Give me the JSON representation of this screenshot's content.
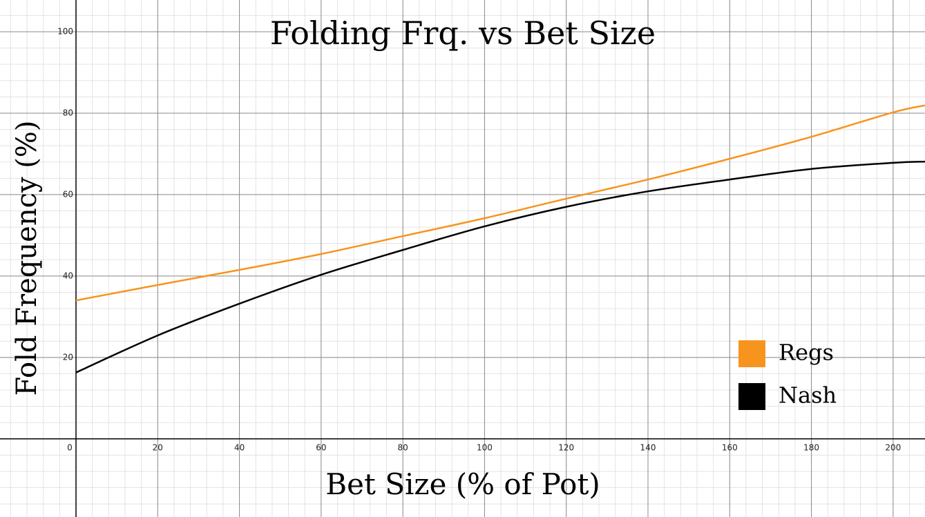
{
  "chart_data": {
    "type": "line",
    "title": "Folding Frq. vs Bet Size",
    "xlabel": "Bet Size (% of Pot)",
    "ylabel": "Fold Frequency (%)",
    "xlim": [
      -18.6,
      207.8
    ],
    "ylim": [
      -19.2,
      107.8
    ],
    "xticks": [
      0,
      20,
      40,
      60,
      80,
      100,
      120,
      140,
      160,
      180,
      200
    ],
    "yticks": [
      20,
      40,
      60,
      80,
      100
    ],
    "grid": true,
    "legend": "lower right",
    "x": [
      0,
      20,
      40,
      60,
      80,
      100,
      120,
      140,
      160,
      180,
      200,
      207.8
    ],
    "series": [
      {
        "name": "Regs",
        "color": "#f7941d",
        "values": [
          34,
          37.8,
          41.5,
          45.4,
          49.8,
          54.2,
          59,
          63.7,
          68.8,
          74.2,
          80.2,
          81.9
        ]
      },
      {
        "name": "Nash",
        "color": "#000000",
        "values": [
          16.3,
          25.4,
          33.2,
          40.3,
          46.4,
          52.2,
          57,
          60.8,
          63.7,
          66.3,
          67.8,
          68.1
        ]
      }
    ]
  }
}
